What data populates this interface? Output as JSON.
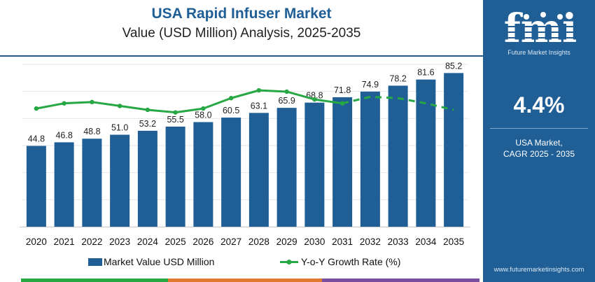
{
  "header": {
    "title": "USA Rapid Infuser Market",
    "subtitle": "Value (USD Million) Analysis, 2025-2035"
  },
  "sidebar": {
    "logo_letters": "fmi",
    "logo_text": "Future Market Insights",
    "cagr_value": "4.4%",
    "cagr_label_line1": "USA Market,",
    "cagr_label_line2": "CAGR 2025 - 2035",
    "website": "www.futuremarketinsights.com"
  },
  "colors": {
    "bar": "#1f5f96",
    "line": "#27a844",
    "title": "#1f5f96",
    "sidebar_bg": "#1f5f96",
    "strip": [
      "#27a844",
      "#e07a2e",
      "#7a4fa0"
    ]
  },
  "chart_data": {
    "type": "bar",
    "categories": [
      "2020",
      "2021",
      "2022",
      "2023",
      "2024",
      "2025",
      "2026",
      "2027",
      "2028",
      "2029",
      "2030",
      "2031",
      "2032",
      "2033",
      "2034",
      "2035"
    ],
    "series": [
      {
        "name": "Market Value USD Million",
        "type": "bar",
        "values": [
          44.8,
          46.8,
          48.8,
          51.0,
          53.2,
          55.5,
          58.0,
          60.5,
          63.1,
          65.9,
          68.8,
          71.8,
          74.9,
          78.2,
          81.6,
          85.2
        ],
        "labels": [
          "44.8",
          "46.8",
          "48.8",
          "51.0",
          "53.2",
          "55.5",
          "58.0",
          "60.5",
          "63.1",
          "65.9",
          "68.8",
          "71.8",
          "74.9",
          "78.2",
          "81.6",
          "85.2"
        ]
      },
      {
        "name": "Y-o-Y Growth Rate (%)",
        "type": "line",
        "values": [
          4.1,
          4.5,
          4.6,
          4.3,
          4.0,
          3.8,
          4.1,
          4.9,
          5.5,
          5.4,
          4.8,
          4.5,
          5.0,
          4.9,
          4.5,
          4.0
        ],
        "dashed_from_index": 11
      }
    ],
    "ylim": [
      0,
      90
    ],
    "line_ylim": [
      -5,
      7.5
    ],
    "grid": true,
    "legend": "bottom"
  }
}
